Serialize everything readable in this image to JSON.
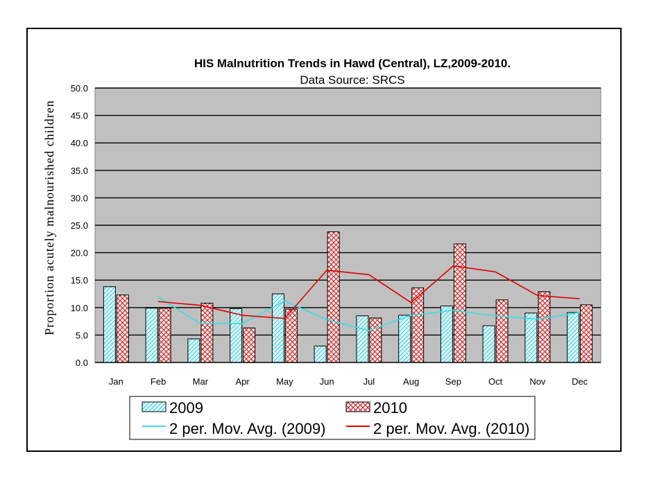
{
  "chart_data": {
    "type": "bar",
    "title": "HIS Malnutrition Trends in Hawd  (Central),  LZ,2009-2010.",
    "subtitle": "Data Source: SRCS",
    "ylabel": "Proportion acutely malnourished children",
    "xlabel": "",
    "ylim": [
      0,
      50
    ],
    "yticks": [
      "0.0",
      "5.0",
      "10.0",
      "15.0",
      "20.0",
      "25.0",
      "30.0",
      "35.0",
      "40.0",
      "45.0",
      "50.0"
    ],
    "categories": [
      "Jan",
      "Feb",
      "Mar",
      "Apr",
      "May",
      "Jun",
      "Jul",
      "Aug",
      "Sep",
      "Oct",
      "Nov",
      "Dec"
    ],
    "grid": true,
    "legend_position": "bottom",
    "series": [
      {
        "name": "2009",
        "kind": "bar",
        "color": "#bfeef2",
        "pattern": "diagonal-hatch-cyan",
        "values": [
          13.8,
          9.9,
          4.3,
          9.8,
          12.5,
          3.0,
          8.5,
          8.6,
          10.3,
          6.7,
          9.0,
          9.1
        ]
      },
      {
        "name": "2010",
        "kind": "bar",
        "color": "#f4c6c6",
        "pattern": "crosshatch-red",
        "values": [
          12.3,
          9.9,
          10.8,
          6.3,
          9.7,
          23.8,
          8.1,
          13.6,
          21.6,
          11.4,
          12.9,
          10.5
        ]
      },
      {
        "name": "2 per. Mov. Avg. (2009)",
        "kind": "line",
        "color": "#33e0e8",
        "values": [
          null,
          11.9,
          7.1,
          7.1,
          11.2,
          7.8,
          5.8,
          8.6,
          9.5,
          8.5,
          7.9,
          9.1
        ]
      },
      {
        "name": "2 per. Mov. Avg. (2010)",
        "kind": "line",
        "color": "#e00000",
        "values": [
          null,
          11.1,
          10.4,
          8.6,
          8.0,
          16.8,
          16.0,
          10.9,
          17.6,
          16.5,
          12.2,
          11.6
        ]
      }
    ]
  }
}
